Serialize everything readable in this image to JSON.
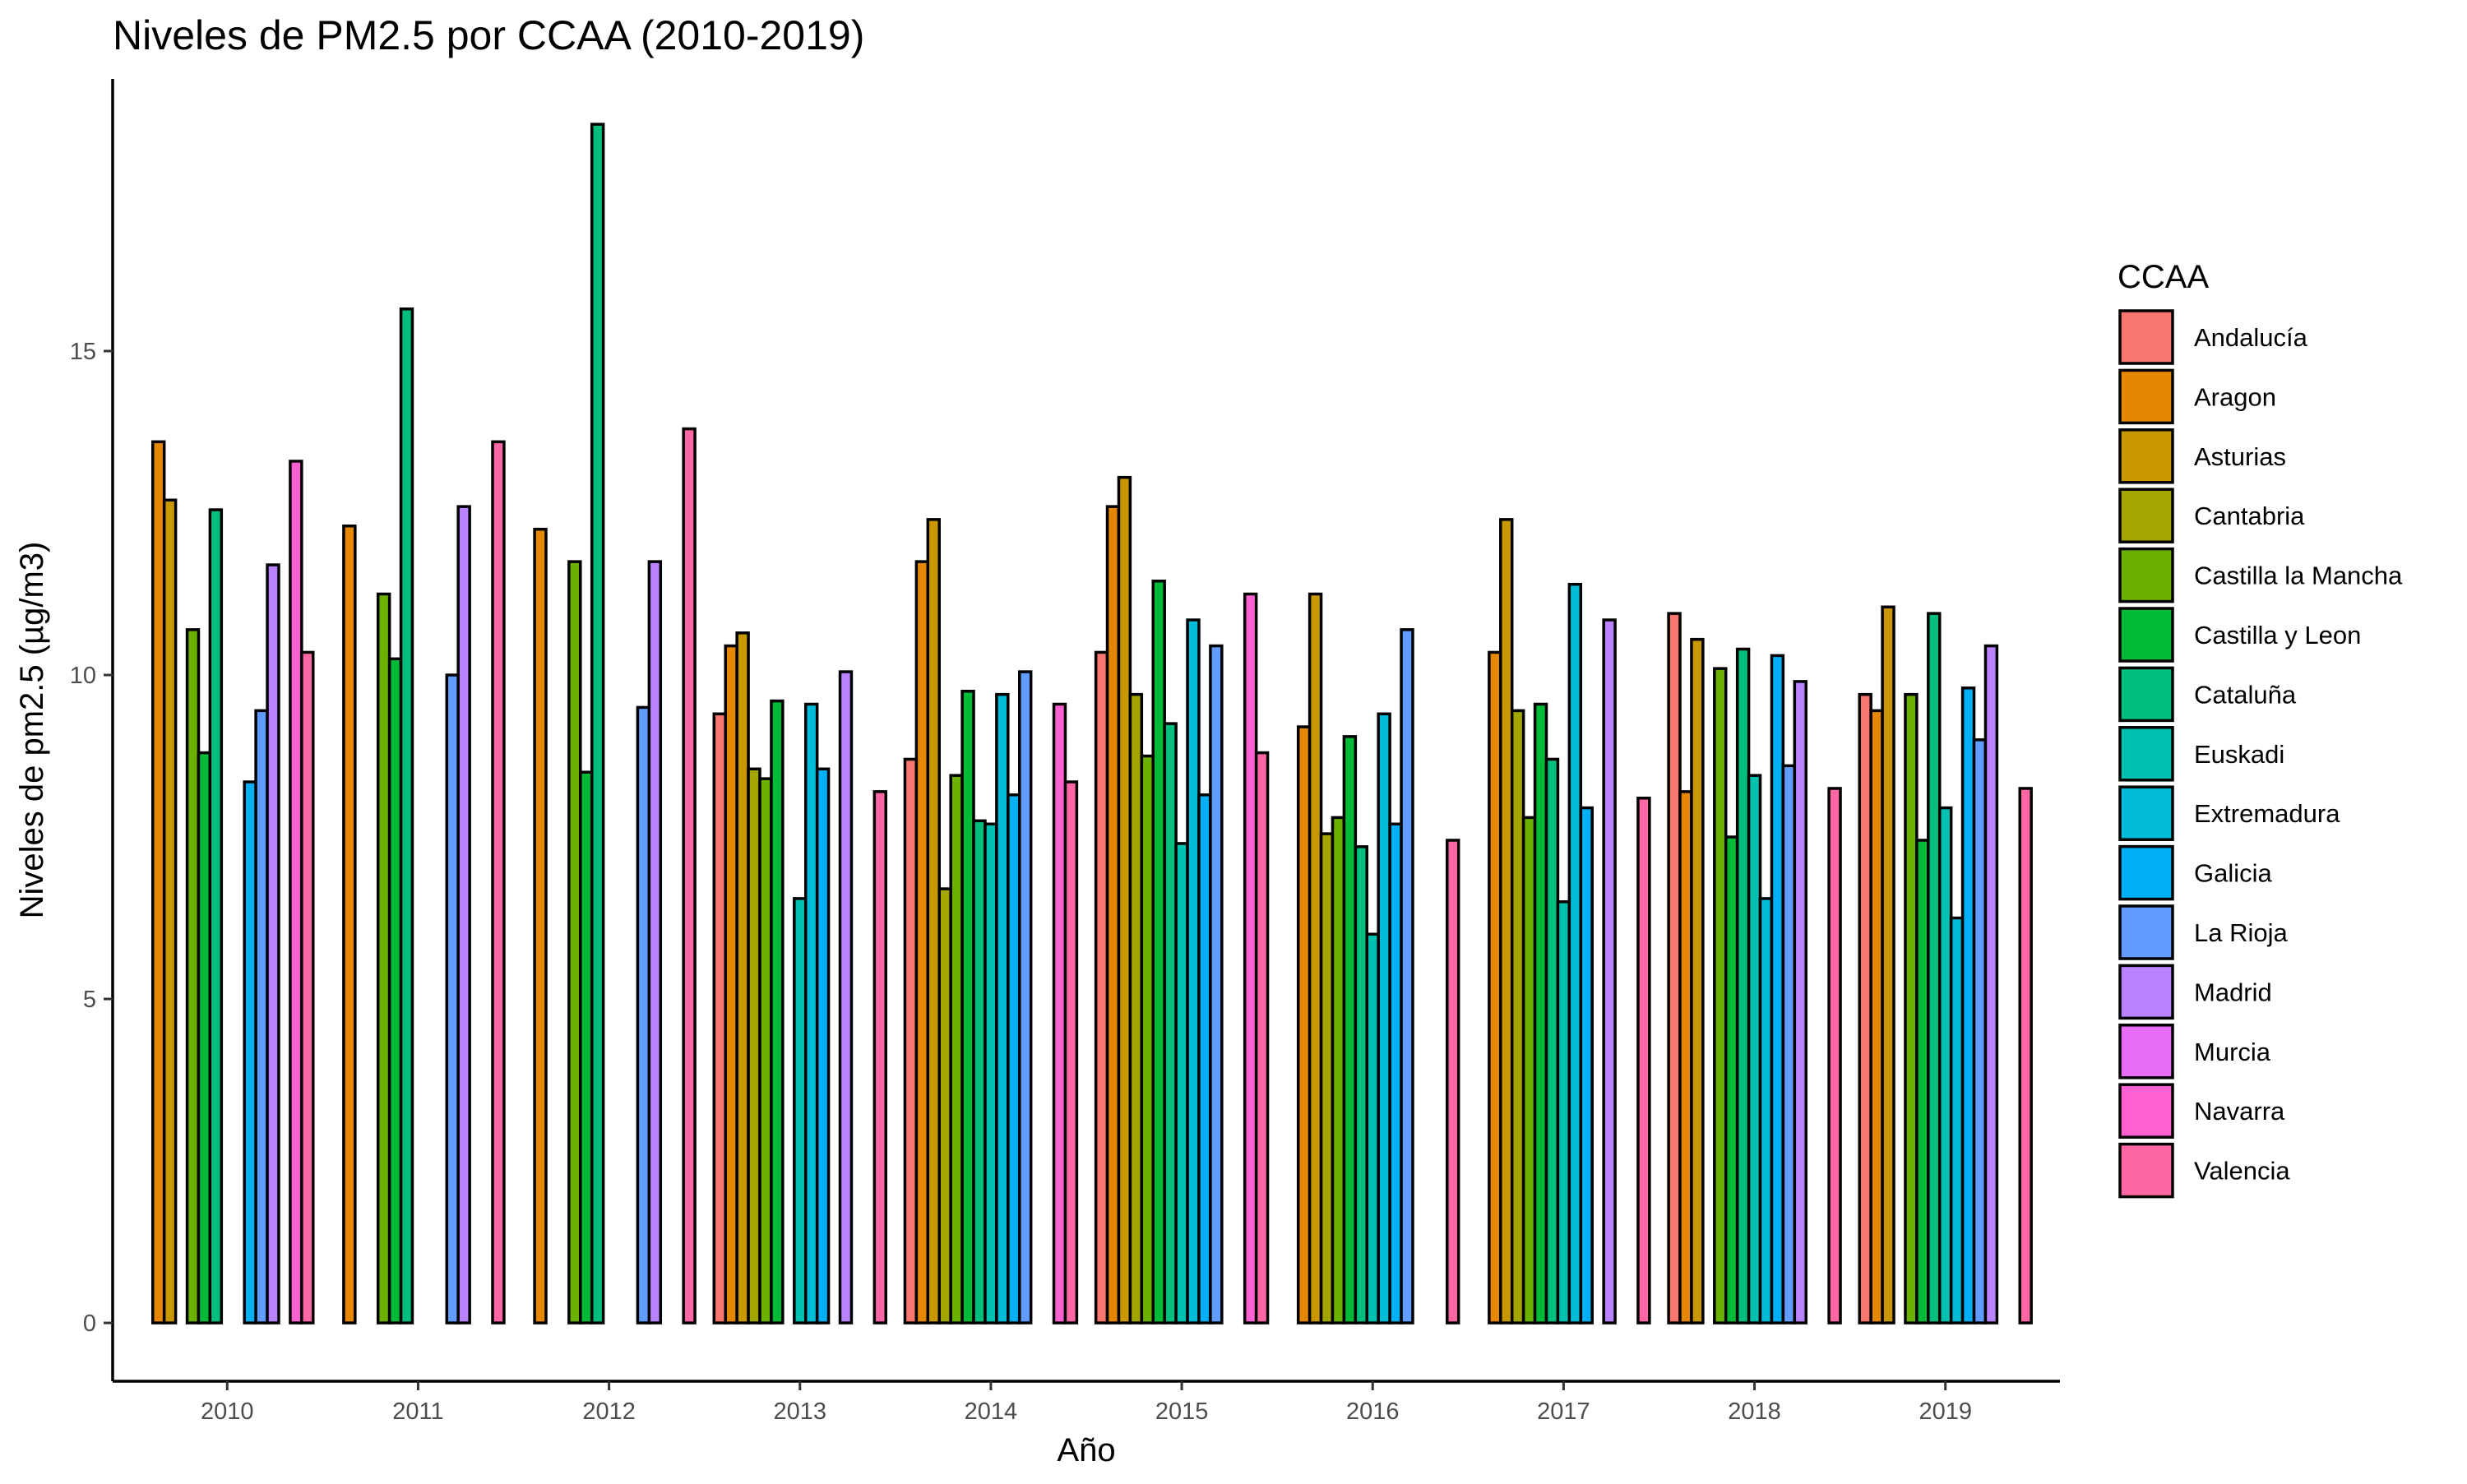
{
  "chart_data": {
    "type": "bar",
    "title": "Niveles de PM2.5 por CCAA (2010-2019)",
    "xlabel": "Año",
    "ylabel": "Niveles de pm2.5 (µg/m3)",
    "ylim": [
      -0.9,
      19.2
    ],
    "yticks": [
      0,
      5,
      10,
      15
    ],
    "grid": false,
    "legend_position": "right",
    "legend_title": "CCAA",
    "categories": [
      "2010",
      "2011",
      "2012",
      "2013",
      "2014",
      "2015",
      "2016",
      "2017",
      "2018",
      "2019"
    ],
    "series": [
      {
        "name": "Andalucía",
        "color": "#F8766D",
        "values": [
          0,
          0,
          0,
          9.4,
          8.7,
          10.35,
          0,
          0,
          10.95,
          9.7
        ]
      },
      {
        "name": "Aragon",
        "color": "#E58700",
        "values": [
          13.6,
          12.3,
          12.25,
          10.45,
          11.75,
          12.6,
          9.2,
          10.35,
          8.2,
          9.45
        ]
      },
      {
        "name": "Asturias",
        "color": "#C99800",
        "values": [
          12.7,
          0,
          0,
          10.65,
          12.4,
          13.05,
          11.25,
          12.4,
          10.55,
          11.05
        ]
      },
      {
        "name": "Cantabria",
        "color": "#A3A500",
        "values": [
          0,
          0,
          0,
          8.55,
          6.7,
          9.7,
          7.55,
          9.45,
          0,
          0
        ]
      },
      {
        "name": "Castilla la Mancha",
        "color": "#6BB100",
        "values": [
          10.7,
          11.25,
          11.75,
          8.4,
          8.45,
          8.75,
          7.8,
          7.8,
          10.1,
          9.7
        ]
      },
      {
        "name": "Castilla y Leon",
        "color": "#00BA38",
        "values": [
          8.8,
          10.25,
          8.5,
          9.6,
          9.75,
          11.45,
          9.05,
          9.55,
          7.5,
          7.45
        ]
      },
      {
        "name": "Cataluña",
        "color": "#00BF7D",
        "values": [
          12.55,
          15.65,
          18.5,
          0,
          7.75,
          9.25,
          7.35,
          8.7,
          10.4,
          10.95
        ]
      },
      {
        "name": "Euskadi",
        "color": "#00C0AF",
        "values": [
          0,
          0,
          0,
          6.55,
          7.7,
          7.4,
          6.0,
          6.5,
          8.45,
          7.95
        ]
      },
      {
        "name": "Extremadura",
        "color": "#00BCD8",
        "values": [
          0,
          0,
          0,
          9.55,
          9.7,
          10.85,
          9.4,
          11.4,
          6.55,
          6.25
        ]
      },
      {
        "name": "Galicia",
        "color": "#00B0F6",
        "values": [
          8.35,
          0,
          0,
          8.55,
          8.15,
          8.15,
          7.7,
          7.95,
          10.3,
          9.8
        ]
      },
      {
        "name": "La Rioja",
        "color": "#619CFF",
        "values": [
          9.45,
          10.0,
          9.5,
          0,
          10.05,
          10.45,
          10.7,
          0,
          8.6,
          9.0
        ]
      },
      {
        "name": "Madrid",
        "color": "#B983FF",
        "values": [
          11.7,
          12.6,
          11.75,
          10.05,
          0,
          0,
          0,
          10.85,
          9.9,
          10.45
        ]
      },
      {
        "name": "Murcia",
        "color": "#E76BF3",
        "values": [
          0,
          0,
          0,
          0,
          0,
          0,
          0,
          0,
          0,
          0
        ]
      },
      {
        "name": "Navarra",
        "color": "#FD61D1",
        "values": [
          13.3,
          0,
          0,
          0,
          9.55,
          11.25,
          0,
          0,
          0,
          0
        ]
      },
      {
        "name": "Valencia",
        "color": "#FF67A4",
        "values": [
          10.35,
          13.6,
          13.8,
          8.2,
          8.35,
          8.8,
          7.45,
          8.1,
          8.25,
          8.25
        ]
      }
    ]
  }
}
